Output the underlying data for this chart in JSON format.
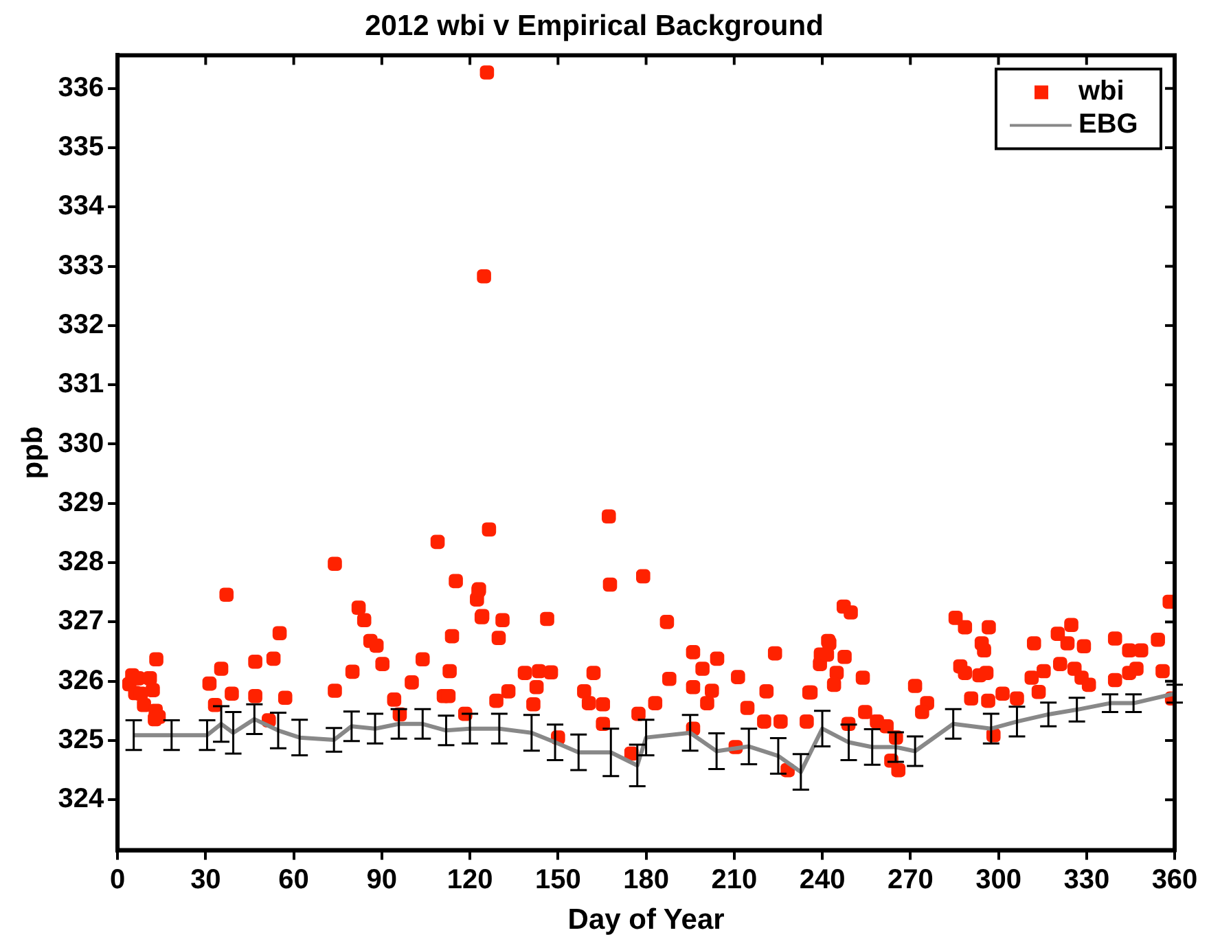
{
  "chart_data": {
    "type": "scatter",
    "title": "2012 wbi v Empirical Background",
    "xlabel": "Day of Year",
    "ylabel": "ppb",
    "xlim": [
      0,
      360
    ],
    "xticks": [
      0,
      30,
      60,
      90,
      120,
      150,
      180,
      210,
      240,
      270,
      300,
      330,
      360
    ],
    "ylim": [
      323.15,
      336.56
    ],
    "yticks": [
      324,
      325,
      326,
      327,
      328,
      329,
      330,
      331,
      332,
      333,
      334,
      335,
      336
    ],
    "legend": "top right",
    "grid": false,
    "series": [
      {
        "name": "wbi",
        "type": "scatter",
        "color": "#ff2200",
        "marker": "square",
        "x": [
          4,
          5,
          6,
          7,
          9,
          11,
          12,
          13,
          14,
          7.9,
          13.2,
          12.7,
          31.3,
          33.2,
          35.3,
          37.1,
          38.9,
          46.9,
          46.9,
          51.5,
          53.1,
          55.2,
          57.1,
          74,
          74,
          80,
          82.1,
          84,
          86.1,
          88.2,
          90.2,
          94.2,
          96.1,
          100.2,
          103.9,
          109,
          113.1,
          113.9,
          115.2,
          111.1,
          112.7,
          118.4,
          122.9,
          122.4,
          124,
          126.5,
          124.8,
          125.8,
          123.1,
          124.2,
          131.1,
          129.8,
          146.3,
          167.3,
          167.7,
          179,
          187.1,
          196,
          204.2,
          199.2,
          223.9,
          211.3,
          187.9,
          221,
          236,
          138.7,
          143.5,
          147.6,
          142.7,
          133.1,
          129,
          141.6,
          162.1,
          158.9,
          160.5,
          165.3,
          196,
          202.4,
          200.8,
          183.1,
          177.4,
          214.5,
          220.2,
          225.8,
          234.7,
          196,
          175,
          150,
          165.3,
          210.5,
          228.2,
          239.5,
          242,
          247.3,
          249.7,
          242.4,
          239.2,
          241.6,
          247.6,
          244.9,
          244,
          253.8,
          235.6,
          271.6,
          275.7,
          274,
          254.6,
          258.6,
          261.9,
          265.1,
          265.9,
          263.5,
          248.9,
          285.4,
          288.6,
          296.7,
          294.3,
          295.1,
          287,
          288.6,
          293.5,
          295.9,
          290.7,
          296.5,
          301.4,
          306.3,
          312.1,
          315.4,
          311.3,
          313.7,
          320.2,
          324.8,
          323.5,
          329.1,
          321,
          325.9,
          328.3,
          330.8,
          339.7,
          344.5,
          348.6,
          354.3,
          339.7,
          344.5,
          347,
          355.9,
          358.3,
          359.1,
          298.3
        ],
        "values": [
          325.95,
          326.1,
          325.8,
          326.05,
          325.6,
          326.05,
          325.85,
          325.5,
          325.4,
          325.79,
          326.37,
          325.36,
          325.96,
          325.6,
          326.21,
          327.46,
          325.79,
          326.33,
          325.75,
          325.34,
          326.38,
          326.81,
          325.72,
          327.98,
          325.84,
          326.16,
          327.24,
          327.03,
          326.68,
          326.6,
          326.29,
          325.69,
          325.44,
          325.98,
          326.37,
          328.35,
          326.17,
          326.76,
          327.69,
          325.75,
          325.75,
          325.45,
          327.53,
          327.38,
          327.08,
          328.56,
          332.83,
          336.27,
          327.55,
          327.1,
          327.03,
          326.73,
          327.05,
          328.78,
          327.63,
          327.77,
          327,
          326.49,
          326.38,
          326.21,
          326.47,
          326.07,
          326.04,
          325.83,
          325.81,
          326.14,
          326.17,
          326.15,
          325.9,
          325.83,
          325.67,
          325.61,
          326.14,
          325.83,
          325.63,
          325.61,
          325.9,
          325.84,
          325.63,
          325.63,
          325.45,
          325.55,
          325.32,
          325.32,
          325.32,
          325.2,
          324.78,
          325.05,
          325.28,
          324.89,
          324.5,
          326.45,
          326.68,
          327.26,
          327.16,
          326.64,
          326.29,
          326.45,
          326.41,
          326.14,
          325.94,
          326.06,
          325.81,
          325.92,
          325.63,
          325.48,
          325.48,
          325.32,
          325.24,
          325.05,
          324.5,
          324.66,
          325.28,
          327.07,
          326.91,
          326.91,
          326.64,
          326.52,
          326.25,
          326.14,
          326.1,
          326.14,
          325.71,
          325.67,
          325.79,
          325.71,
          326.64,
          326.17,
          326.06,
          325.82,
          326.8,
          326.95,
          326.64,
          326.59,
          326.29,
          326.21,
          326.06,
          325.94,
          326.72,
          326.52,
          326.52,
          326.7,
          326.02,
          326.14,
          326.21,
          326.17,
          327.34,
          325.71,
          325.09
        ]
      },
      {
        "name": "EBG",
        "type": "line",
        "color": "#888888",
        "marker": "none",
        "line_style": "solid",
        "x": [
          5.5,
          18.4,
          30.5,
          35.3,
          39.4,
          46.6,
          54.7,
          62,
          73.7,
          79.7,
          87.7,
          95.8,
          103.9,
          111.9,
          120,
          130,
          141,
          149,
          157,
          168,
          177,
          180,
          195,
          204,
          215,
          225,
          232.7,
          240,
          249,
          257,
          265,
          271.6,
          284.6,
          297.5,
          306.3,
          317,
          326.7,
          338,
          346,
          360
        ],
        "values": [
          325.09,
          325.09,
          325.09,
          325.28,
          325.13,
          325.36,
          325.17,
          325.05,
          325.01,
          325.24,
          325.2,
          325.28,
          325.28,
          325.17,
          325.2,
          325.2,
          325.13,
          324.97,
          324.8,
          324.8,
          324.58,
          325.05,
          325.13,
          324.82,
          324.9,
          324.74,
          324.47,
          325.2,
          324.97,
          324.89,
          324.89,
          324.82,
          325.28,
          325.2,
          325.32,
          325.44,
          325.52,
          325.63,
          325.63,
          325.79
        ],
        "errors": [
          0.25,
          0.25,
          0.25,
          0.3,
          0.35,
          0.25,
          0.3,
          0.3,
          0.2,
          0.25,
          0.25,
          0.25,
          0.25,
          0.25,
          0.25,
          0.25,
          0.3,
          0.3,
          0.3,
          0.4,
          0.35,
          0.3,
          0.3,
          0.3,
          0.3,
          0.3,
          0.3,
          0.3,
          0.3,
          0.3,
          0.25,
          0.25,
          0.25,
          0.25,
          0.25,
          0.2,
          0.2,
          0.15,
          0.15,
          0.15
        ]
      }
    ]
  }
}
